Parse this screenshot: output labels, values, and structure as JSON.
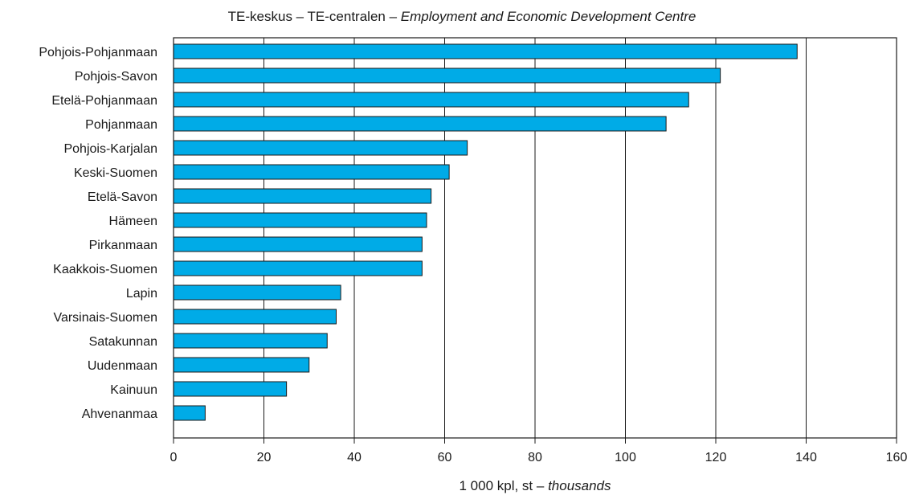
{
  "chart_data": {
    "type": "bar",
    "orientation": "horizontal",
    "title": {
      "main": "TE-keskus – TE-centralen – ",
      "italic": "Employment and Economic Development Centre"
    },
    "xlabel": {
      "main": "1 000 kpl, st – ",
      "italic": "thousands"
    },
    "ylabel": "",
    "categories": [
      "Pohjois-Pohjanmaan",
      "Pohjois-Savon",
      "Etelä-Pohjanmaan",
      "Pohjanmaan",
      "Pohjois-Karjalan",
      "Keski-Suomen",
      "Etelä-Savon",
      "Hämeen",
      "Pirkanmaan",
      "Kaakkois-Suomen",
      "Lapin",
      "Varsinais-Suomen",
      "Satakunnan",
      "Uudenmaan",
      "Kainuun",
      "Ahvenanmaa"
    ],
    "values": [
      138,
      121,
      114,
      109,
      65,
      61,
      57,
      56,
      55,
      55,
      37,
      36,
      34,
      30,
      25,
      7
    ],
    "xlim": [
      0,
      160
    ],
    "xticks": [
      0,
      20,
      40,
      60,
      80,
      100,
      120,
      140,
      160
    ],
    "grid": "vertical",
    "legend": "none",
    "bar_color": "#00ABE7"
  }
}
